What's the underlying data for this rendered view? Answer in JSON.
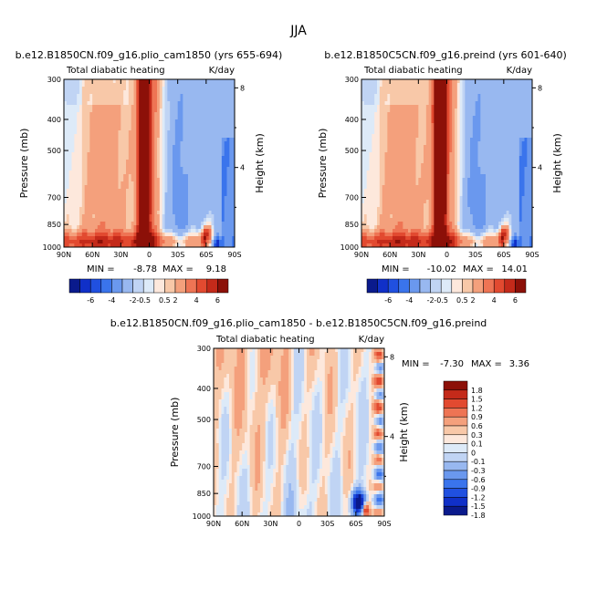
{
  "figure": {
    "title": "JJA"
  },
  "colors": {
    "scale_main": [
      "#0a1a8c",
      "#1030c8",
      "#2050e0",
      "#3a74ec",
      "#6a98ee",
      "#98b8f0",
      "#c0d4f4",
      "#ddeaf8",
      "#fde8dc",
      "#f8c8a8",
      "#f4a07c",
      "#ee7454",
      "#e24a30",
      "#c42a1a",
      "#8c1008"
    ],
    "scale_diff": [
      "#0a1a8c",
      "#1030c8",
      "#2050e0",
      "#3a74ec",
      "#6a98ee",
      "#98b8f0",
      "#c0d4f4",
      "#ddeaf8",
      "#fde8dc",
      "#f8c8a8",
      "#f4a07c",
      "#ee7454",
      "#e24a30",
      "#c42a1a",
      "#8c1008"
    ]
  },
  "chart_data": [
    {
      "type": "heatmap",
      "title": "b.e12.B1850CN.f09_g16.plio_cam1850 (yrs 655-694)",
      "left_label": "Total diabatic heating",
      "right_label": "K/day",
      "ylabel": "Pressure (mb)",
      "ylabel_right": "Height (km)",
      "x_ticks": [
        "90N",
        "60N",
        "30N",
        "0",
        "30S",
        "60S",
        "90S"
      ],
      "y_ticks": [
        300,
        400,
        500,
        700,
        850,
        1000
      ],
      "y_ticks_right": [
        8,
        4
      ],
      "min_label": "MIN =",
      "min_value": "-8.78",
      "max_label": "MAX =",
      "max_value": "9.18",
      "colorbar_labels": [
        "-6",
        "-4",
        "-2",
        "-0.5",
        "0.5",
        "2",
        "4",
        "6"
      ]
    },
    {
      "type": "heatmap",
      "title": "b.e12.B1850C5CN.f09_g16.preind (yrs 601-640)",
      "left_label": "Total diabatic heating",
      "right_label": "K/day",
      "ylabel": "Pressure (mb)",
      "ylabel_right": "Height (km)",
      "x_ticks": [
        "90N",
        "60N",
        "30N",
        "0",
        "30S",
        "60S",
        "90S"
      ],
      "y_ticks": [
        300,
        400,
        500,
        700,
        850,
        1000
      ],
      "y_ticks_right": [
        8,
        4
      ],
      "min_label": "MIN =",
      "min_value": "-10.02",
      "max_label": "MAX =",
      "max_value": "14.01",
      "colorbar_labels": [
        "-6",
        "-4",
        "-2",
        "-0.5",
        "0.5",
        "2",
        "4",
        "6"
      ]
    },
    {
      "type": "heatmap",
      "title": "b.e12.B1850CN.f09_g16.plio_cam1850 - b.e12.B1850C5CN.f09_g16.preind",
      "left_label": "Total diabatic heating",
      "right_label": "K/day",
      "ylabel": "Pressure (mb)",
      "ylabel_right": "Height (km)",
      "x_ticks": [
        "90N",
        "60N",
        "30N",
        "0",
        "30S",
        "60S",
        "90S"
      ],
      "y_ticks": [
        300,
        400,
        500,
        700,
        850,
        1000
      ],
      "y_ticks_right": [
        8,
        4
      ],
      "min_label": "MIN =",
      "min_value": "-7.30",
      "max_label": "MAX =",
      "max_value": "3.36",
      "colorbar_labels": [
        "1.8",
        "1.5",
        "1.2",
        "0.9",
        "0.6",
        "0.3",
        "0.1",
        "0",
        "-0.1",
        "-0.3",
        "-0.6",
        "-0.9",
        "-1.2",
        "-1.5",
        "-1.8"
      ]
    }
  ]
}
